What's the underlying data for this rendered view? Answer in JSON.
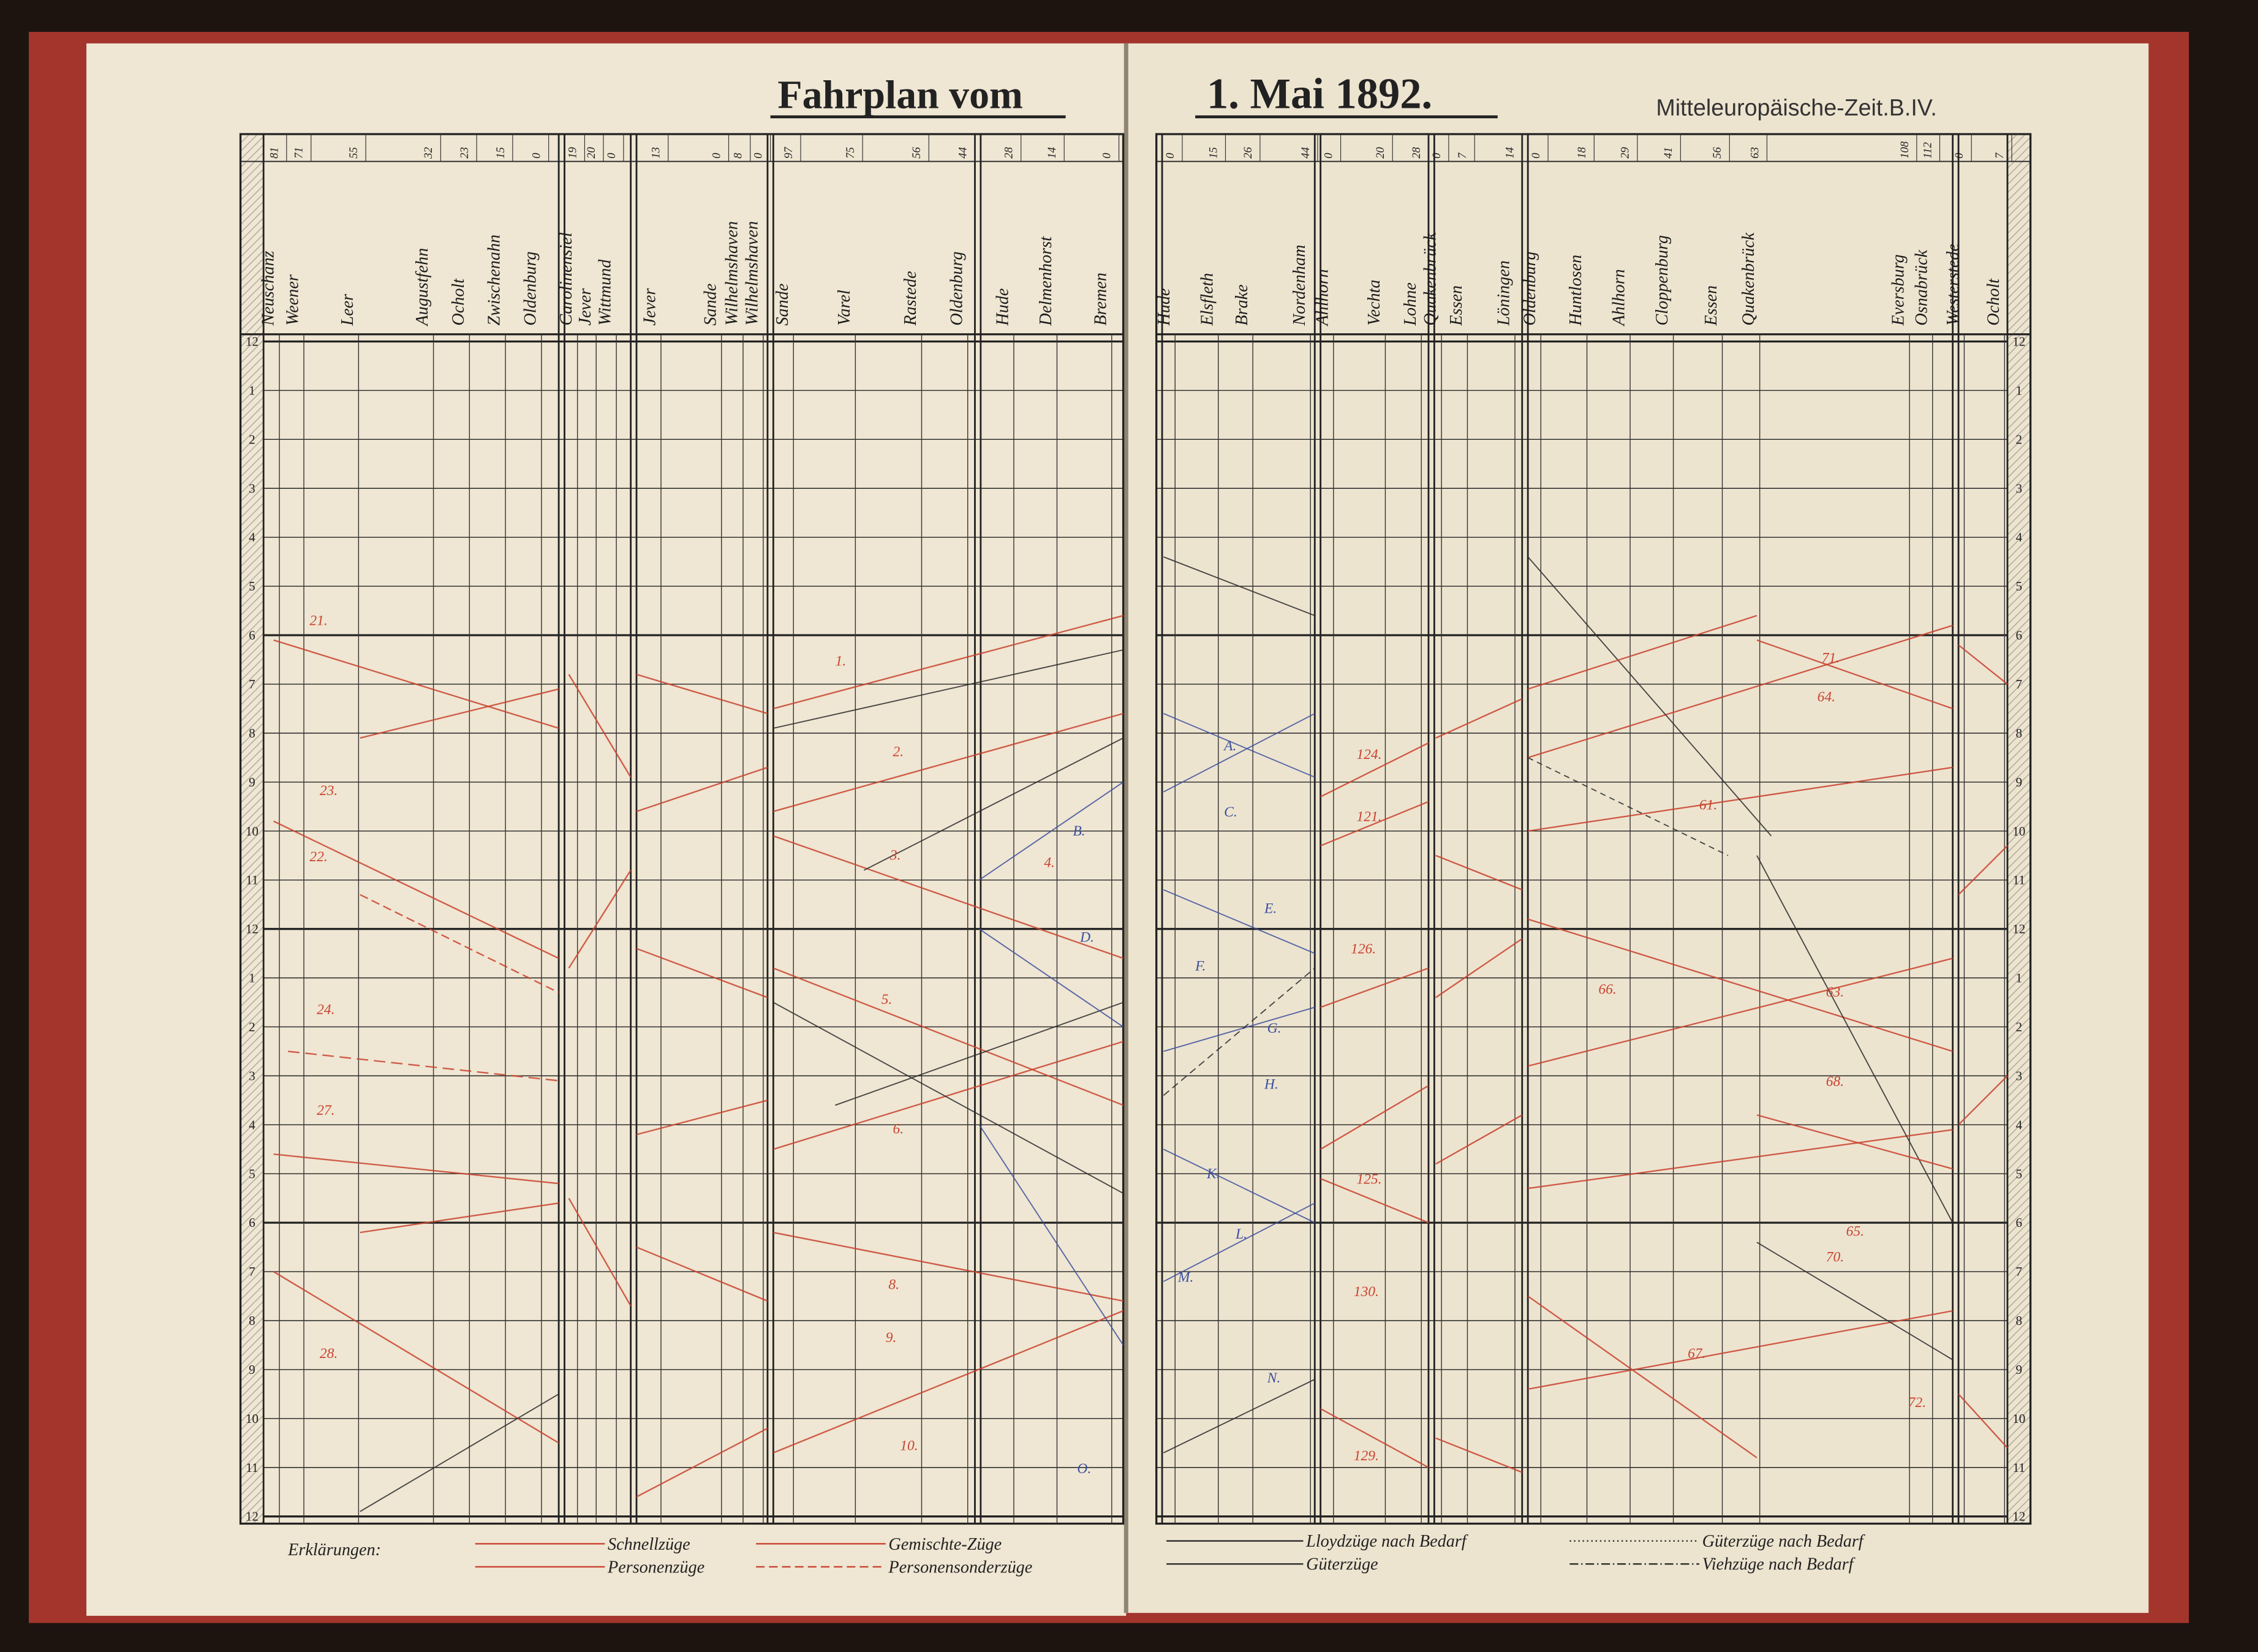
{
  "header": {
    "title_left": "Fahrplan vom",
    "title_right": "1. Mai 1892.",
    "zone": "Mitteleuropäische-Zeit.B.IV."
  },
  "left_page": {
    "stations": [
      {
        "name": "Neuschanz",
        "km": 81
      },
      {
        "name": "Weener",
        "km": 71
      },
      {
        "name": "Leer",
        "km": 55
      },
      {
        "name": "Augustfehn",
        "km": 32
      },
      {
        "name": "Ocholt",
        "km": 23
      },
      {
        "name": "Zwischenahn",
        "km": 15
      },
      {
        "name": "Oldenburg",
        "km": 0
      },
      {
        "name": "Carolinensiel",
        "km": 19
      },
      {
        "name": "Jever",
        "km": 20
      },
      {
        "name": "Wittmund",
        "km": 0
      },
      {
        "name": "Jever",
        "km": 13
      },
      {
        "name": "Sande",
        "km": 0
      },
      {
        "name": "Wilhelmshaven",
        "km": 8
      },
      {
        "name": "Wilhelmshaven",
        "km": 0
      },
      {
        "name": "Sande",
        "km": 97
      },
      {
        "name": "Varel",
        "km": 75
      },
      {
        "name": "Rastede",
        "km": 56
      },
      {
        "name": "Oldenburg",
        "km": 44
      },
      {
        "name": "Hude",
        "km": 28
      },
      {
        "name": "Delmenhorst",
        "km": 14
      },
      {
        "name": "Bremen",
        "km": 0
      }
    ]
  },
  "right_page": {
    "stations": [
      {
        "name": "Hude",
        "km": 0
      },
      {
        "name": "Elsfleth",
        "km": 15
      },
      {
        "name": "Brake",
        "km": 26
      },
      {
        "name": "Nordenham",
        "km": 44
      },
      {
        "name": "Ahlhorn",
        "km": 0
      },
      {
        "name": "Vechta",
        "km": 20
      },
      {
        "name": "Lohne",
        "km": 28
      },
      {
        "name": "Quakenbrück",
        "km": 0
      },
      {
        "name": "Essen",
        "km": 7
      },
      {
        "name": "Löningen",
        "km": 14
      },
      {
        "name": "Oldenburg",
        "km": 0
      },
      {
        "name": "Huntlosen",
        "km": 18
      },
      {
        "name": "Ahlhorn",
        "km": 29
      },
      {
        "name": "Cloppenburg",
        "km": 41
      },
      {
        "name": "Essen",
        "km": 56
      },
      {
        "name": "Quakenbrück",
        "km": 63
      },
      {
        "name": "Eversburg",
        "km": 108
      },
      {
        "name": "Osnabrück",
        "km": 112
      },
      {
        "name": "Westerstede",
        "km": 0
      },
      {
        "name": "Ocholt",
        "km": 7
      }
    ]
  },
  "hours": [
    12,
    1,
    2,
    3,
    4,
    5,
    6,
    7,
    8,
    9,
    10,
    11,
    12,
    1,
    2,
    3,
    4,
    5,
    6,
    7,
    8,
    9,
    10,
    11,
    12
  ],
  "train_labels": [
    "1.",
    "2.",
    "3.",
    "4.",
    "5.",
    "6.",
    "8.",
    "9.",
    "10.",
    "21.",
    "22.",
    "23.",
    "24.",
    "27.",
    "28.",
    "61.",
    "63.",
    "64.",
    "65.",
    "66.",
    "67.",
    "68.",
    "70.",
    "71.",
    "72.",
    "121.",
    "124.",
    "125.",
    "126.",
    "129.",
    "130.",
    "A.",
    "B.",
    "C.",
    "D.",
    "E.",
    "F.",
    "G.",
    "H.",
    "K.",
    "L.",
    "M.",
    "N.",
    "O."
  ],
  "legend": {
    "title": "Erklärungen:",
    "items": [
      "Schnellzüge",
      "Personenzüge",
      "Gemischte-Züge",
      "Personensonderzüge",
      "Lloydzüge nach Bedarf",
      "Güterzüge",
      "Güterzüge nach Bedarf",
      "Viehzüge nach Bedarf"
    ]
  }
}
